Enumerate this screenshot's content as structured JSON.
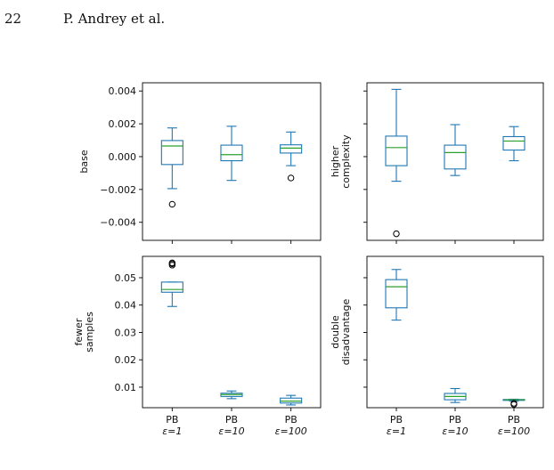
{
  "header": {
    "page_number": "22",
    "authors": "P. Andrey et al."
  },
  "colors": {
    "box": "#1f77b4",
    "median": "#2ca02c",
    "axis": "#000000",
    "flier": "#000000"
  },
  "x_categories": [
    {
      "line1": "PB",
      "line2": "ε=1"
    },
    {
      "line1": "PB",
      "line2": "ε=10"
    },
    {
      "line1": "PB",
      "line2": "ε=100"
    }
  ],
  "chart_data": [
    {
      "type": "box",
      "panel": "top-left",
      "ylabel": [
        "base"
      ],
      "ylim": [
        -0.0051,
        0.0045
      ],
      "show_tick_labels": true,
      "yticks": [
        -0.004,
        -0.002,
        0.0,
        0.002,
        0.004
      ],
      "ytick_labels": [
        "−0.004",
        "−0.002",
        "0.000",
        "0.002",
        "0.004"
      ],
      "boxes": [
        {
          "category": "PB ε=1",
          "whisker_low": -0.00195,
          "q1": -0.00048,
          "median": 0.00065,
          "q3": 0.00098,
          "whisker_high": 0.00175,
          "fliers": [
            -0.0029
          ]
        },
        {
          "category": "PB ε=10",
          "whisker_low": -0.00145,
          "q1": -0.00025,
          "median": 0.00012,
          "q3": 0.0007,
          "whisker_high": 0.00185,
          "fliers": []
        },
        {
          "category": "PB ε=100",
          "whisker_low": -0.00055,
          "q1": 0.00022,
          "median": 0.00052,
          "q3": 0.00072,
          "whisker_high": 0.0015,
          "fliers": [
            -0.0013
          ]
        }
      ]
    },
    {
      "type": "box",
      "panel": "top-right",
      "ylabel": [
        "higher",
        "complexity"
      ],
      "ylim": [
        -0.0051,
        0.0045
      ],
      "show_tick_labels": false,
      "yticks": [
        -0.004,
        -0.002,
        0.0,
        0.002,
        0.004
      ],
      "ytick_labels": [],
      "boxes": [
        {
          "category": "PB ε=1",
          "whisker_low": -0.0015,
          "q1": -0.00055,
          "median": 0.00055,
          "q3": 0.00125,
          "whisker_high": 0.0041,
          "fliers": [
            -0.0047
          ]
        },
        {
          "category": "PB ε=10",
          "whisker_low": -0.00115,
          "q1": -0.00075,
          "median": 0.00025,
          "q3": 0.0007,
          "whisker_high": 0.00195,
          "fliers": []
        },
        {
          "category": "PB ε=100",
          "whisker_low": -0.00025,
          "q1": 0.0004,
          "median": 0.00095,
          "q3": 0.00122,
          "whisker_high": 0.00183,
          "fliers": []
        }
      ]
    },
    {
      "type": "box",
      "panel": "bottom-left",
      "ylabel": [
        "fewer",
        "samples"
      ],
      "ylim": [
        0.0025,
        0.0578
      ],
      "show_tick_labels": true,
      "yticks": [
        0.01,
        0.02,
        0.03,
        0.04,
        0.05
      ],
      "ytick_labels": [
        "0.01",
        "0.02",
        "0.03",
        "0.04",
        "0.05"
      ],
      "boxes": [
        {
          "category": "PB ε=1",
          "whisker_low": 0.0395,
          "q1": 0.0447,
          "median": 0.0457,
          "q3": 0.0484,
          "whisker_high": 0.0484,
          "fliers": [
            0.0546,
            0.0551,
            0.0554
          ]
        },
        {
          "category": "PB ε=10",
          "whisker_low": 0.0058,
          "q1": 0.0066,
          "median": 0.0073,
          "q3": 0.0078,
          "whisker_high": 0.0086,
          "fliers": []
        },
        {
          "category": "PB ε=100",
          "whisker_low": 0.0035,
          "q1": 0.0042,
          "median": 0.0049,
          "q3": 0.006,
          "whisker_high": 0.007,
          "fliers": []
        }
      ]
    },
    {
      "type": "box",
      "panel": "bottom-right",
      "ylabel": [
        "double",
        "disadvantage"
      ],
      "ylim": [
        0.0025,
        0.0578
      ],
      "show_tick_labels": false,
      "yticks": [
        0.01,
        0.02,
        0.03,
        0.04,
        0.05
      ],
      "ytick_labels": [],
      "boxes": [
        {
          "category": "PB ε=1",
          "whisker_low": 0.0345,
          "q1": 0.039,
          "median": 0.0467,
          "q3": 0.0493,
          "whisker_high": 0.053,
          "fliers": []
        },
        {
          "category": "PB ε=10",
          "whisker_low": 0.0044,
          "q1": 0.0054,
          "median": 0.0066,
          "q3": 0.0077,
          "whisker_high": 0.0095,
          "fliers": []
        },
        {
          "category": "PB ε=100",
          "whisker_low": 0.0049,
          "q1": 0.0053,
          "median": 0.0054,
          "q3": 0.0055,
          "whisker_high": 0.0056,
          "fliers": [
            0.0037,
            0.0041
          ]
        }
      ]
    }
  ]
}
